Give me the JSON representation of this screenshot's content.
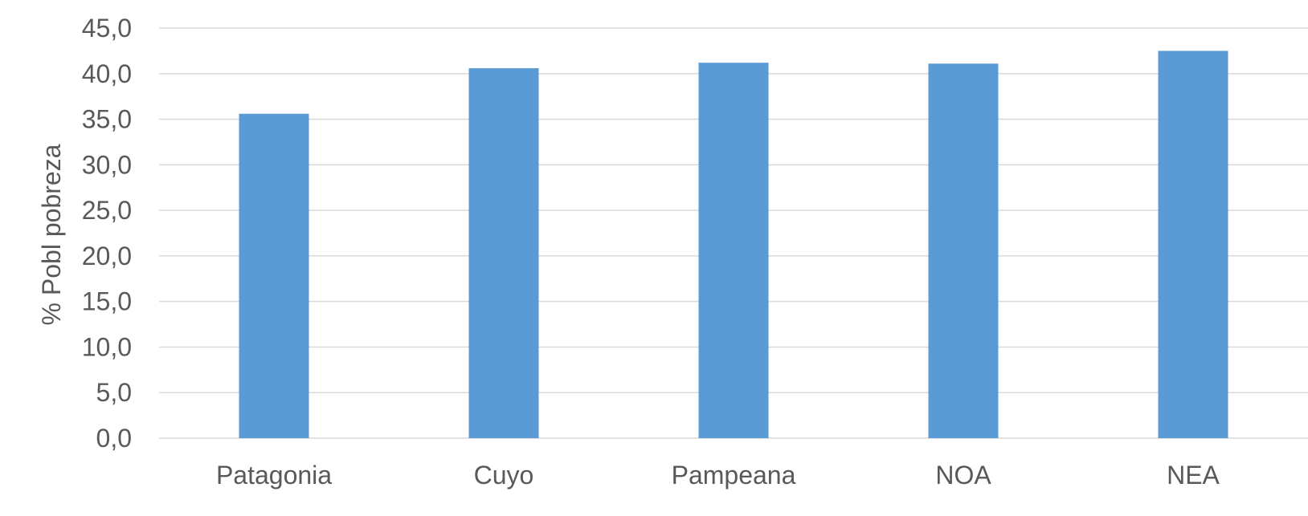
{
  "chart_data": {
    "type": "bar",
    "title": "",
    "xlabel": "",
    "ylabel": "% Pobl pobreza",
    "categories": [
      "Patagonia",
      "Cuyo",
      "Pampeana",
      "NOA",
      "NEA"
    ],
    "values": [
      35.6,
      40.6,
      41.2,
      41.1,
      42.5
    ],
    "ylim": [
      0,
      45
    ],
    "yticks": [
      "0,0",
      "5,0",
      "10,0",
      "15,0",
      "20,0",
      "25,0",
      "30,0",
      "35,0",
      "40,0",
      "45,0"
    ],
    "grid": true,
    "legend": "none",
    "bar_color": "#5B9BD5",
    "grid_color": "#D9D9D9",
    "text_color": "#595959"
  }
}
